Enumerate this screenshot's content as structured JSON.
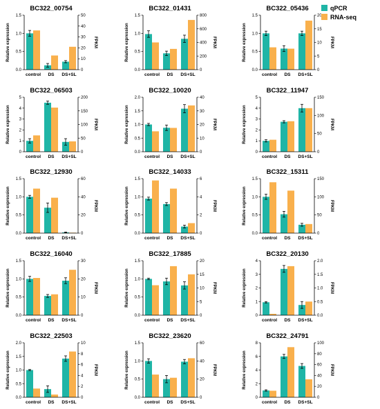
{
  "legend": [
    {
      "label": "qPCR",
      "color": "#1fb5a6"
    },
    {
      "label": "RNA-seq",
      "color": "#f9b04c"
    }
  ],
  "error_bar_color": "#000000",
  "axis_labels": {
    "left": "Relative expression",
    "right": "FPKM"
  },
  "categories": [
    "control",
    "DS",
    "DS+SL"
  ],
  "chart_data": [
    {
      "type": "bar",
      "title": "BC322_00754",
      "categories": [
        "control",
        "DS",
        "DS+SL"
      ],
      "ylabel": "Relative expression",
      "y2label": "FPKM",
      "ylim": [
        0,
        1.5
      ],
      "yticks": [
        0.0,
        0.5,
        1.0,
        1.5
      ],
      "y2lim": [
        0,
        50
      ],
      "y2ticks": [
        0,
        10,
        20,
        30,
        40,
        50
      ],
      "series": [
        {
          "name": "qPCR",
          "axis": "left",
          "values": [
            1.0,
            0.12,
            0.22
          ],
          "errors": [
            0.08,
            0.05,
            0.03
          ]
        },
        {
          "name": "RNA-seq",
          "axis": "right",
          "values": [
            36,
            13,
            21
          ]
        }
      ]
    },
    {
      "type": "bar",
      "title": "BC322_01431",
      "categories": [
        "control",
        "DS",
        "DS+SL"
      ],
      "ylabel": "Relative expression",
      "y2label": "FPKM",
      "ylim": [
        0,
        1.5
      ],
      "yticks": [
        0.0,
        0.5,
        1.0,
        1.5
      ],
      "y2lim": [
        0,
        800
      ],
      "y2ticks": [
        0,
        200,
        400,
        600,
        800
      ],
      "series": [
        {
          "name": "qPCR",
          "axis": "left",
          "values": [
            0.98,
            0.45,
            0.85
          ],
          "errors": [
            0.09,
            0.06,
            0.1
          ]
        },
        {
          "name": "RNA-seq",
          "axis": "right",
          "values": [
            400,
            305,
            730
          ]
        }
      ]
    },
    {
      "type": "bar",
      "title": "BC322_05436",
      "categories": [
        "control",
        "DS",
        "DS+SL"
      ],
      "ylabel": "Relative expression",
      "y2label": "FPKM",
      "ylim": [
        0,
        1.5
      ],
      "yticks": [
        0.0,
        0.5,
        1.0,
        1.5
      ],
      "y2lim": [
        0,
        20
      ],
      "y2ticks": [
        0,
        5,
        10,
        15,
        20
      ],
      "series": [
        {
          "name": "qPCR",
          "axis": "left",
          "values": [
            1.0,
            0.58,
            1.0
          ],
          "errors": [
            0.06,
            0.08,
            0.06
          ]
        },
        {
          "name": "RNA-seq",
          "axis": "right",
          "values": [
            8.2,
            7.7,
            18
          ]
        }
      ]
    },
    {
      "type": "bar",
      "title": "BC322_06503",
      "categories": [
        "control",
        "DS",
        "DS+SL"
      ],
      "ylabel": "Relative expression",
      "y2label": "FPKM",
      "ylim": [
        0,
        5
      ],
      "yticks": [
        0,
        1,
        2,
        3,
        4,
        5
      ],
      "y2lim": [
        0,
        200
      ],
      "y2ticks": [
        0,
        50,
        100,
        150,
        200
      ],
      "series": [
        {
          "name": "qPCR",
          "axis": "left",
          "values": [
            1.0,
            4.5,
            0.9
          ],
          "errors": [
            0.2,
            0.15,
            0.3
          ]
        },
        {
          "name": "RNA-seq",
          "axis": "right",
          "values": [
            60,
            162,
            38
          ]
        }
      ]
    },
    {
      "type": "bar",
      "title": "BC322_10020",
      "categories": [
        "control",
        "DS",
        "DS+SL"
      ],
      "ylabel": "Relative expression",
      "y2label": "FPKM",
      "ylim": [
        0,
        2.0
      ],
      "yticks": [
        0.0,
        0.5,
        1.0,
        1.5,
        2.0
      ],
      "y2lim": [
        0,
        40
      ],
      "y2ticks": [
        0,
        10,
        20,
        30,
        40
      ],
      "series": [
        {
          "name": "qPCR",
          "axis": "left",
          "values": [
            1.0,
            0.88,
            1.58
          ],
          "errors": [
            0.04,
            0.1,
            0.15
          ]
        },
        {
          "name": "RNA-seq",
          "axis": "right",
          "values": [
            15,
            17.5,
            34
          ]
        }
      ]
    },
    {
      "type": "bar",
      "title": "BC322_11947",
      "categories": [
        "control",
        "DS",
        "DS+SL"
      ],
      "ylabel": "Relative expression",
      "y2label": "FPKM",
      "ylim": [
        0,
        5
      ],
      "yticks": [
        0,
        1,
        2,
        3,
        4,
        5
      ],
      "y2lim": [
        0,
        150
      ],
      "y2ticks": [
        0,
        50,
        100,
        150
      ],
      "series": [
        {
          "name": "qPCR",
          "axis": "left",
          "values": [
            1.0,
            2.75,
            4.0
          ],
          "errors": [
            0.1,
            0.1,
            0.35
          ]
        },
        {
          "name": "RNA-seq",
          "axis": "right",
          "values": [
            33,
            84,
            120
          ]
        }
      ]
    },
    {
      "type": "bar",
      "title": "BC322_12930",
      "categories": [
        "control",
        "DS",
        "DS+SL"
      ],
      "ylabel": "Relative expression",
      "y2label": "FPKM",
      "ylim": [
        0,
        1.5
      ],
      "yticks": [
        0.0,
        0.5,
        1.0,
        1.5
      ],
      "y2lim": [
        0,
        60
      ],
      "y2ticks": [
        0,
        20,
        40,
        60
      ],
      "series": [
        {
          "name": "qPCR",
          "axis": "left",
          "values": [
            1.0,
            0.7,
            0.02
          ],
          "errors": [
            0.04,
            0.13,
            0.01
          ]
        },
        {
          "name": "RNA-seq",
          "axis": "right",
          "values": [
            49,
            39,
            0.5
          ]
        }
      ]
    },
    {
      "type": "bar",
      "title": "BC322_14033",
      "categories": [
        "control",
        "DS",
        "DS+SL"
      ],
      "ylabel": "Relative expression",
      "y2label": "FPKM",
      "ylim": [
        0,
        1.5
      ],
      "yticks": [
        0.0,
        0.5,
        1.0,
        1.5
      ],
      "y2lim": [
        0,
        6
      ],
      "y2ticks": [
        0,
        2,
        4,
        6
      ],
      "series": [
        {
          "name": "qPCR",
          "axis": "left",
          "values": [
            0.95,
            0.8,
            0.18
          ],
          "errors": [
            0.04,
            0.04,
            0.04
          ]
        },
        {
          "name": "RNA-seq",
          "axis": "right",
          "values": [
            5.8,
            4.9,
            1.1
          ]
        }
      ]
    },
    {
      "type": "bar",
      "title": "BC322_15311",
      "categories": [
        "control",
        "DS",
        "DS+SL"
      ],
      "ylabel": "Relative expression",
      "y2label": "FPKM",
      "ylim": [
        0,
        1.5
      ],
      "yticks": [
        0.0,
        0.5,
        1.0,
        1.5
      ],
      "y2lim": [
        0,
        150
      ],
      "y2ticks": [
        0,
        50,
        100,
        150
      ],
      "series": [
        {
          "name": "qPCR",
          "axis": "left",
          "values": [
            1.0,
            0.52,
            0.23
          ],
          "errors": [
            0.07,
            0.08,
            0.04
          ]
        },
        {
          "name": "RNA-seq",
          "axis": "right",
          "values": [
            140,
            117,
            25
          ]
        }
      ]
    },
    {
      "type": "bar",
      "title": "BC322_16040",
      "categories": [
        "control",
        "DS",
        "DS+SL"
      ],
      "ylabel": "Relative expression",
      "y2label": "FPKM",
      "ylim": [
        0,
        1.5
      ],
      "yticks": [
        0.0,
        0.5,
        1.0,
        1.5
      ],
      "y2lim": [
        0,
        30
      ],
      "y2ticks": [
        0,
        10,
        20,
        30
      ],
      "series": [
        {
          "name": "qPCR",
          "axis": "left",
          "values": [
            1.0,
            0.53,
            0.95
          ],
          "errors": [
            0.07,
            0.04,
            0.08
          ]
        },
        {
          "name": "RNA-seq",
          "axis": "right",
          "values": [
            20.5,
            11.5,
            25
          ]
        }
      ]
    },
    {
      "type": "bar",
      "title": "BC322_17885",
      "categories": [
        "control",
        "DS",
        "DS+SL"
      ],
      "ylabel": "Relative expression",
      "y2label": "FPKM",
      "ylim": [
        0,
        1.5
      ],
      "yticks": [
        0.0,
        0.5,
        1.0,
        1.5
      ],
      "y2lim": [
        0,
        20
      ],
      "y2ticks": [
        0,
        5,
        10,
        15,
        20
      ],
      "series": [
        {
          "name": "qPCR",
          "axis": "left",
          "values": [
            1.0,
            0.93,
            0.82
          ],
          "errors": [
            0.02,
            0.09,
            0.1
          ]
        },
        {
          "name": "RNA-seq",
          "axis": "right",
          "values": [
            11,
            18,
            15
          ]
        }
      ]
    },
    {
      "type": "bar",
      "title": "BC322_20130",
      "categories": [
        "control",
        "DS",
        "DS+SL"
      ],
      "ylabel": "Relative expression",
      "y2label": "FPKM",
      "ylim": [
        0,
        4
      ],
      "yticks": [
        0,
        1,
        2,
        3,
        4
      ],
      "y2lim": [
        0,
        2.0
      ],
      "y2ticks": [
        0.0,
        0.5,
        1.0,
        1.5,
        2.0
      ],
      "series": [
        {
          "name": "qPCR",
          "axis": "left",
          "values": [
            0.95,
            3.4,
            0.75
          ],
          "errors": [
            0.05,
            0.25,
            0.25
          ]
        },
        {
          "name": "RNA-seq",
          "axis": "right",
          "values": [
            0.05,
            1.8,
            0.5
          ]
        }
      ]
    },
    {
      "type": "bar",
      "title": "BC322_22503",
      "categories": [
        "control",
        "DS",
        "DS+SL"
      ],
      "ylabel": "Relative expression",
      "y2label": "FPKM",
      "ylim": [
        0,
        2.0
      ],
      "yticks": [
        0.0,
        0.5,
        1.0,
        1.5,
        2.0
      ],
      "y2lim": [
        0,
        10
      ],
      "y2ticks": [
        0,
        2,
        4,
        6,
        8,
        10
      ],
      "series": [
        {
          "name": "qPCR",
          "axis": "left",
          "values": [
            1.0,
            0.3,
            1.42
          ],
          "errors": [
            0.02,
            0.12,
            0.1
          ]
        },
        {
          "name": "RNA-seq",
          "axis": "right",
          "values": [
            1.6,
            0.5,
            8.4
          ]
        }
      ]
    },
    {
      "type": "bar",
      "title": "BC322_23620",
      "categories": [
        "control",
        "DS",
        "DS+SL"
      ],
      "ylabel": "Relative expression",
      "y2label": "FPKM",
      "ylim": [
        0,
        1.5
      ],
      "yticks": [
        0.0,
        0.5,
        1.0,
        1.5
      ],
      "y2lim": [
        0,
        60
      ],
      "y2ticks": [
        0,
        20,
        40,
        60
      ],
      "series": [
        {
          "name": "qPCR",
          "axis": "left",
          "values": [
            1.0,
            0.5,
            0.98
          ],
          "errors": [
            0.06,
            0.1,
            0.06
          ]
        },
        {
          "name": "RNA-seq",
          "axis": "right",
          "values": [
            25,
            21.5,
            43
          ]
        }
      ]
    },
    {
      "type": "bar",
      "title": "BC322_24791",
      "categories": [
        "control",
        "DS",
        "DS+SL"
      ],
      "ylabel": "Relative expression",
      "y2label": "FPKM",
      "ylim": [
        0,
        8
      ],
      "yticks": [
        0,
        2,
        4,
        6,
        8
      ],
      "y2lim": [
        0,
        100
      ],
      "y2ticks": [
        0,
        20,
        40,
        60,
        80,
        100
      ],
      "series": [
        {
          "name": "qPCR",
          "axis": "left",
          "values": [
            1.0,
            6.0,
            4.6
          ],
          "errors": [
            0.1,
            0.3,
            0.35
          ]
        },
        {
          "name": "RNA-seq",
          "axis": "right",
          "values": [
            12,
            92,
            33
          ]
        }
      ]
    }
  ]
}
